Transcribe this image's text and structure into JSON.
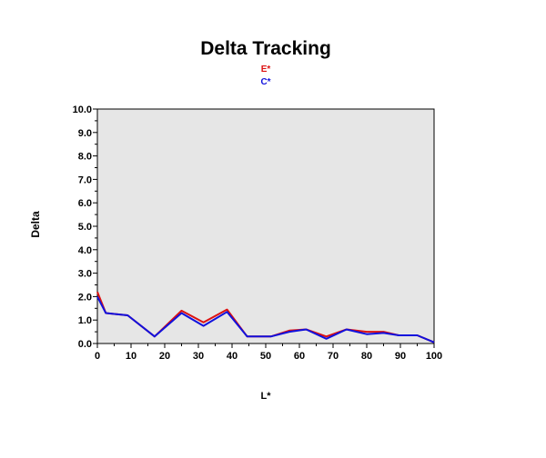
{
  "chart_data": {
    "type": "line",
    "title": "Delta Tracking",
    "xlabel": "L*",
    "ylabel": "Delta",
    "xlim": [
      0,
      100
    ],
    "ylim": [
      0,
      10
    ],
    "xticks": [
      "0",
      "10",
      "20",
      "30",
      "40",
      "50",
      "60",
      "70",
      "80",
      "90",
      "100"
    ],
    "yticks": [
      "0.0",
      "1.0",
      "2.0",
      "3.0",
      "4.0",
      "5.0",
      "6.0",
      "7.0",
      "8.0",
      "9.0",
      "10.0"
    ],
    "grid": false,
    "plot_background": "#e6e6e6",
    "legend_position": "top-center",
    "series": [
      {
        "name": "E*",
        "color": "#dd1111",
        "x": [
          0,
          2.5,
          9,
          17,
          25,
          31.5,
          38.5,
          44.5,
          51.5,
          57,
          62,
          68,
          74,
          80,
          85,
          89.5,
          95,
          100
        ],
        "y": [
          2.2,
          1.3,
          1.2,
          0.3,
          1.4,
          0.9,
          1.45,
          0.3,
          0.3,
          0.55,
          0.6,
          0.3,
          0.6,
          0.5,
          0.5,
          0.35,
          0.35,
          0.05
        ]
      },
      {
        "name": "C*",
        "color": "#1111dd",
        "x": [
          0,
          2.5,
          9,
          17,
          25,
          31.5,
          38.5,
          44.5,
          51.5,
          57,
          62,
          68,
          74,
          80,
          85,
          89.5,
          95,
          100
        ],
        "y": [
          2.0,
          1.3,
          1.2,
          0.3,
          1.3,
          0.75,
          1.35,
          0.3,
          0.3,
          0.5,
          0.6,
          0.2,
          0.6,
          0.4,
          0.45,
          0.35,
          0.35,
          0.05
        ]
      }
    ]
  }
}
